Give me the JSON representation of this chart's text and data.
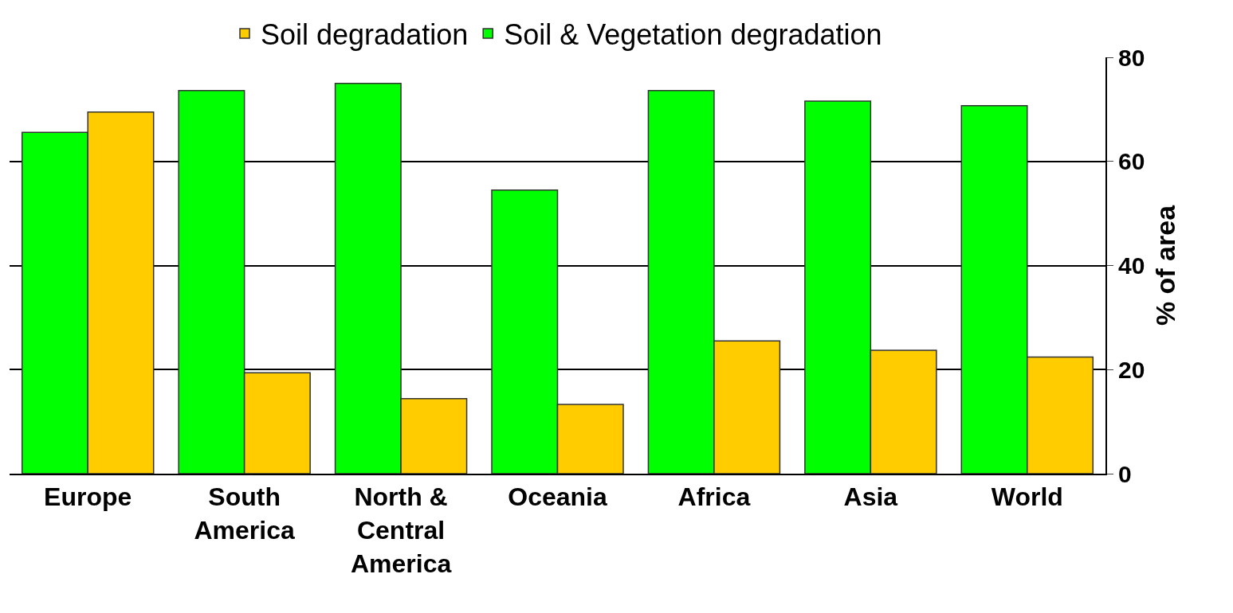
{
  "chart_data": {
    "type": "bar",
    "categories": [
      "Europe",
      "South America",
      "North & Central America",
      "Oceania",
      "Africa",
      "Asia",
      "World"
    ],
    "series": [
      {
        "name": "Soil & Vegetation degradation",
        "color": "#00ff00",
        "axis": "y2",
        "values": [
          65.6,
          73.6,
          75,
          54.5,
          73.6,
          71.6,
          70.7
        ]
      },
      {
        "name": "Soil degradation",
        "color": "#ffcc00",
        "axis": "y2",
        "values": [
          69.5,
          19.4,
          14.4,
          13.3,
          25.5,
          23.7,
          22.4
        ]
      }
    ],
    "y2label": "% of area",
    "y2lim": [
      0,
      80
    ],
    "y2ticks": [
      0,
      20,
      40,
      60,
      80
    ],
    "grid": "y",
    "legend": "top"
  }
}
